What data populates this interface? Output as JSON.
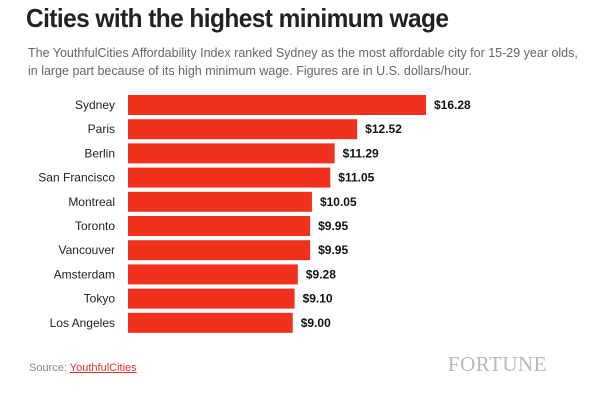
{
  "title": "Cities with the highest minimum wage",
  "subtitle": "The YouthfulCities Affordability Index ranked Sydney as the most affordable city for 15-29 year olds, in large part because of its high minimum wage. Figures are in U.S. dollars/hour.",
  "source": {
    "prefix": "Source: ",
    "link_text": "YouthfulCities"
  },
  "brand": "FORTUNE",
  "colors": {
    "bar": "#f0311e",
    "title": "#222222",
    "subtitle": "#666666",
    "link": "#d9342b"
  },
  "chart_data": {
    "type": "bar",
    "orientation": "horizontal",
    "categories": [
      "Sydney",
      "Paris",
      "Berlin",
      "San Francisco",
      "Montreal",
      "Toronto",
      "Vancouver",
      "Amsterdam",
      "Tokyo",
      "Los Angeles"
    ],
    "values": [
      16.28,
      12.52,
      11.29,
      11.05,
      10.05,
      9.95,
      9.95,
      9.28,
      9.1,
      9.0
    ],
    "value_labels": [
      "$16.28",
      "$12.52",
      "$11.29",
      "$11.05",
      "$10.05",
      "$9.95",
      "$9.95",
      "$9.28",
      "$9.10",
      "$9.00"
    ],
    "xlim": [
      0,
      16.28
    ],
    "grid": false
  }
}
